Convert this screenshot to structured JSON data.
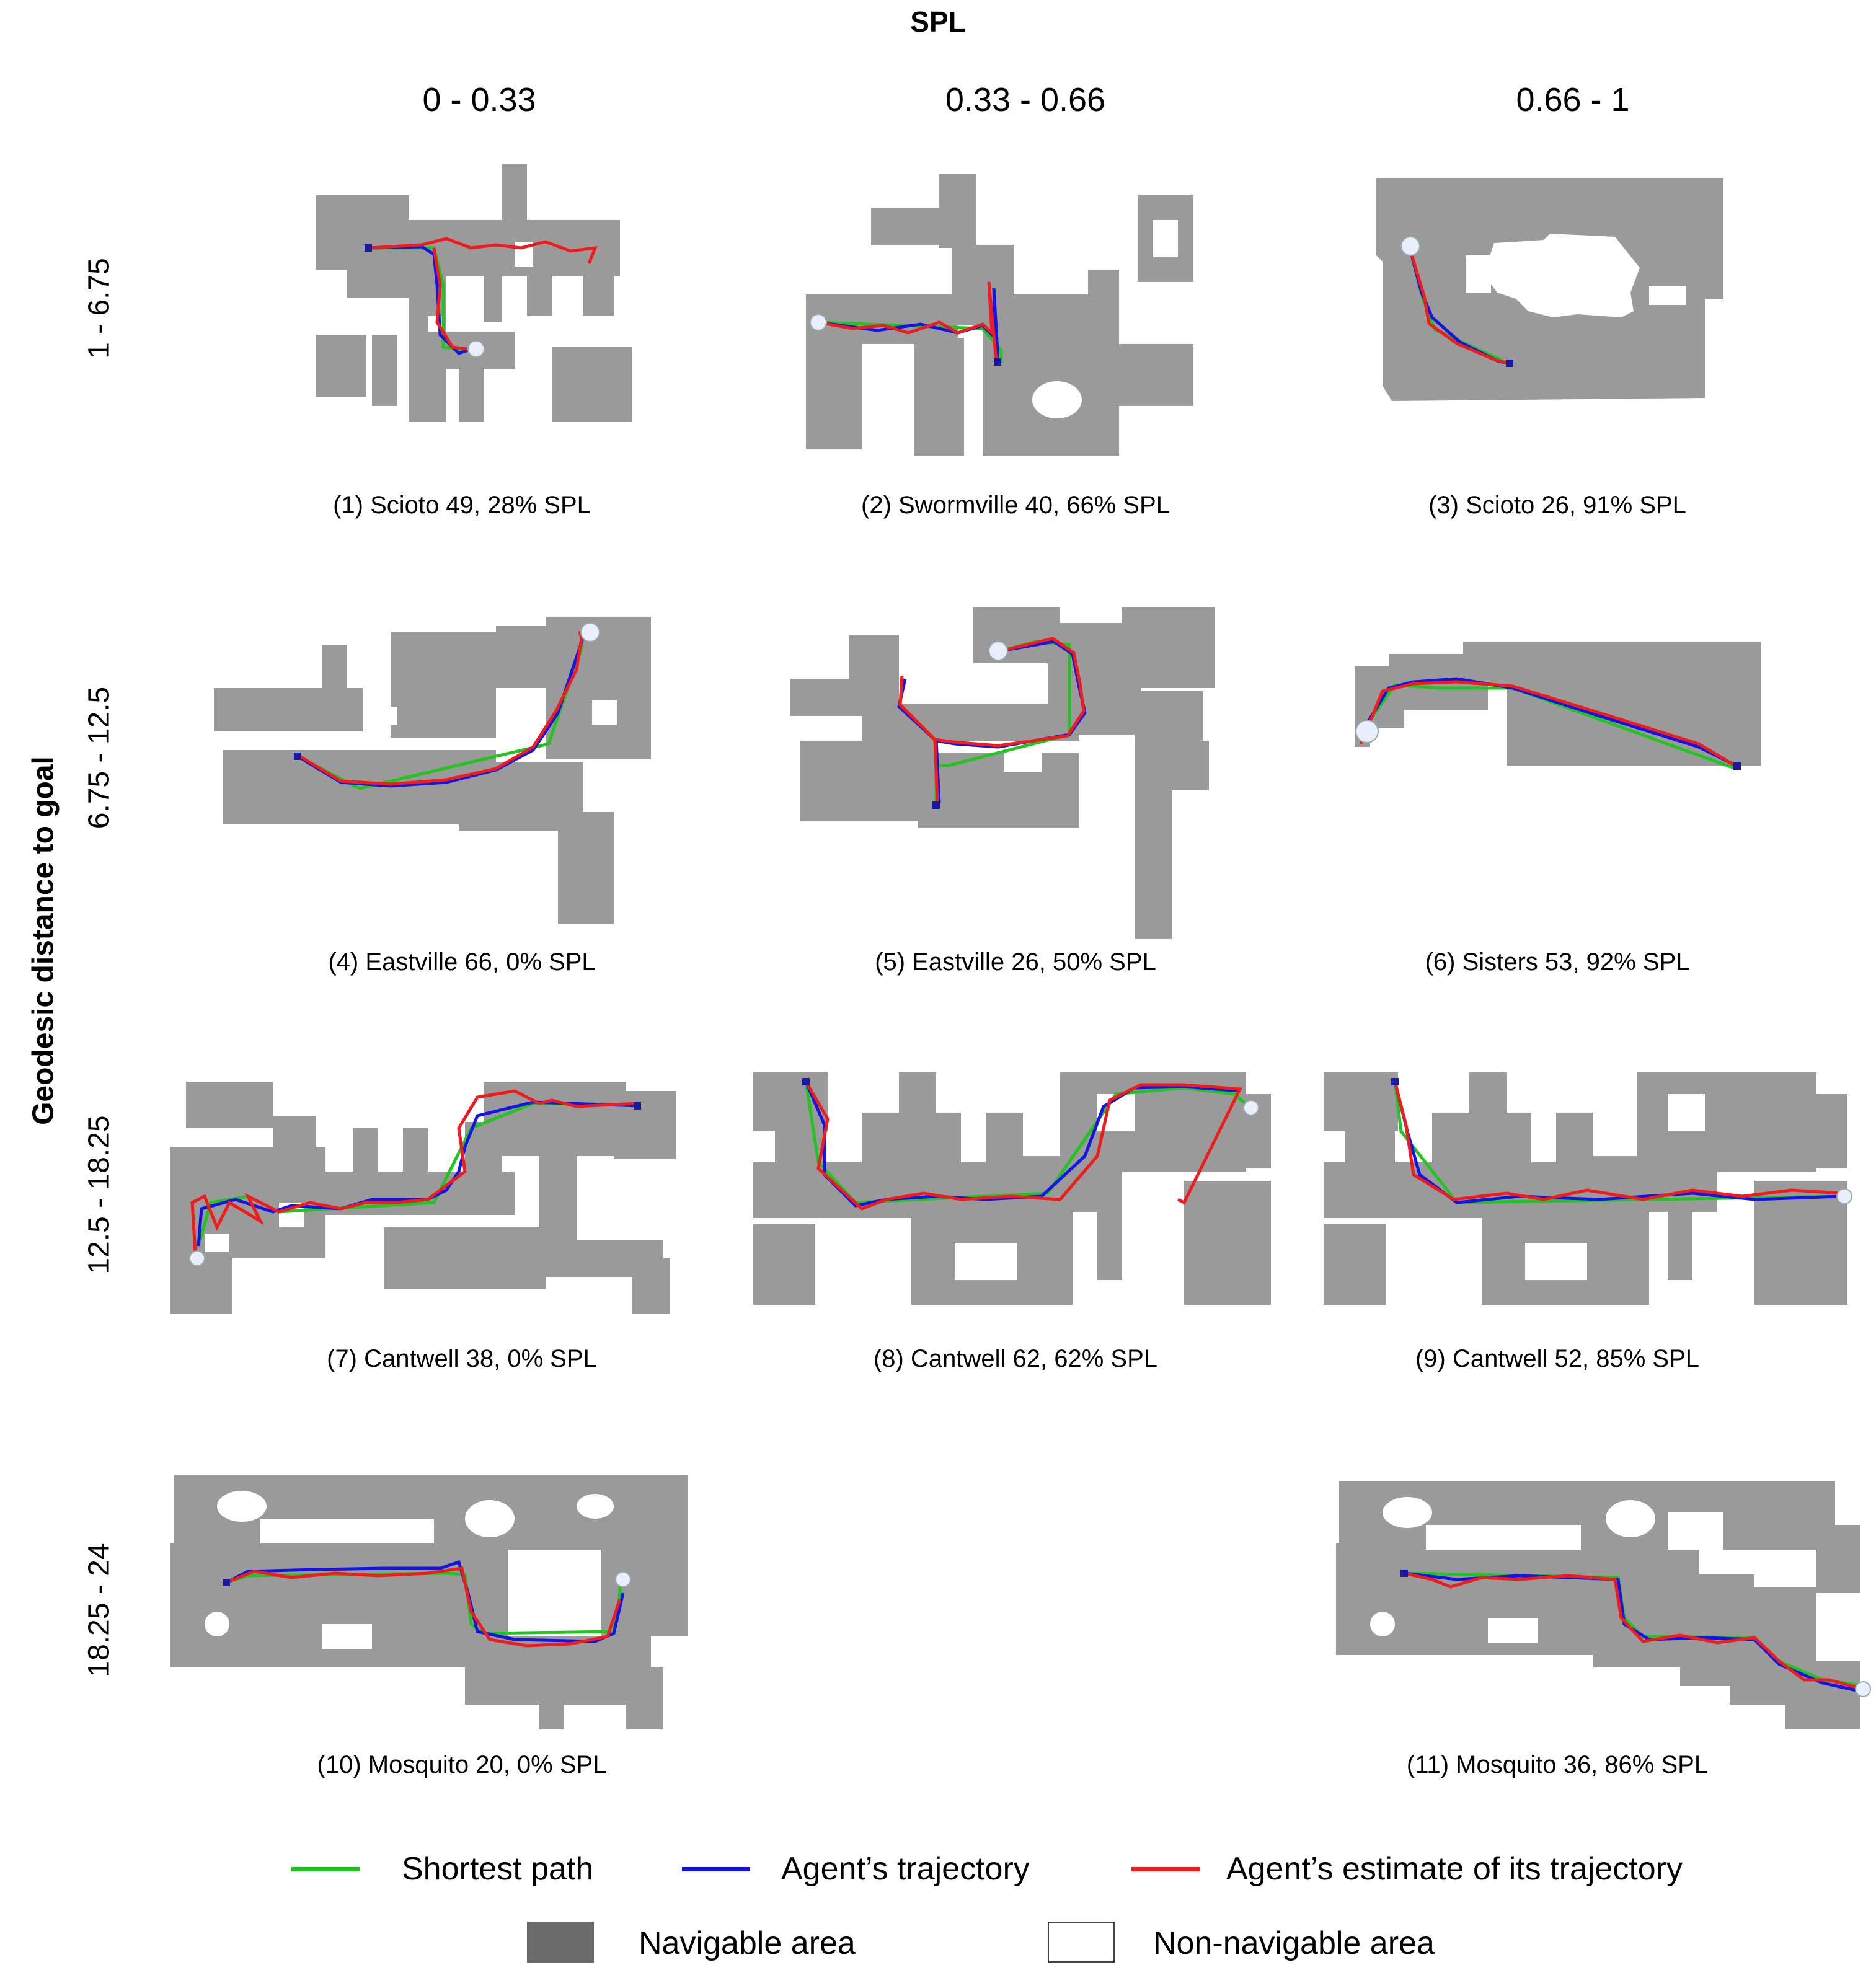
{
  "title": "SPL",
  "columns": [
    "0 - 0.33",
    "0.33 - 0.66",
    "0.66 - 1"
  ],
  "row_axis_label": "Geodesic distance to goal",
  "rows": [
    "1 - 6.75",
    "6.75 - 12.5",
    "12.5 - 18.25",
    "18.25 - 24"
  ],
  "panels": [
    {
      "caption": "(1) Scioto 49, 28% SPL"
    },
    {
      "caption": "(2) Swormville 40, 66% SPL"
    },
    {
      "caption": "(3) Scioto 26, 91% SPL"
    },
    {
      "caption": "(4) Eastville 66, 0% SPL"
    },
    {
      "caption": "(5) Eastville 26, 50% SPL"
    },
    {
      "caption": "(6) Sisters 53, 92% SPL"
    },
    {
      "caption": "(7) Cantwell 38, 0% SPL"
    },
    {
      "caption": "(8) Cantwell 62, 62% SPL"
    },
    {
      "caption": "(9) Cantwell 52, 85% SPL"
    },
    {
      "caption": "(10) Mosquito 20, 0% SPL"
    },
    {
      "caption": "(11) Mosquito 36, 86% SPL"
    }
  ],
  "legend": {
    "shortest": "Shortest path",
    "agent": "Agent’s trajectory",
    "estimate": "Agent’s estimate of its trajectory",
    "navigable": "Navigable area",
    "nonnavigable": "Non-navigable area"
  },
  "colors": {
    "navigable": "#9a9a9a",
    "navigable_legend": "#6b6b6b",
    "shortest": "#22c422",
    "agent": "#1414e6",
    "estimate": "#ee1c1c",
    "goal_marker": "#1a1aa0"
  }
}
